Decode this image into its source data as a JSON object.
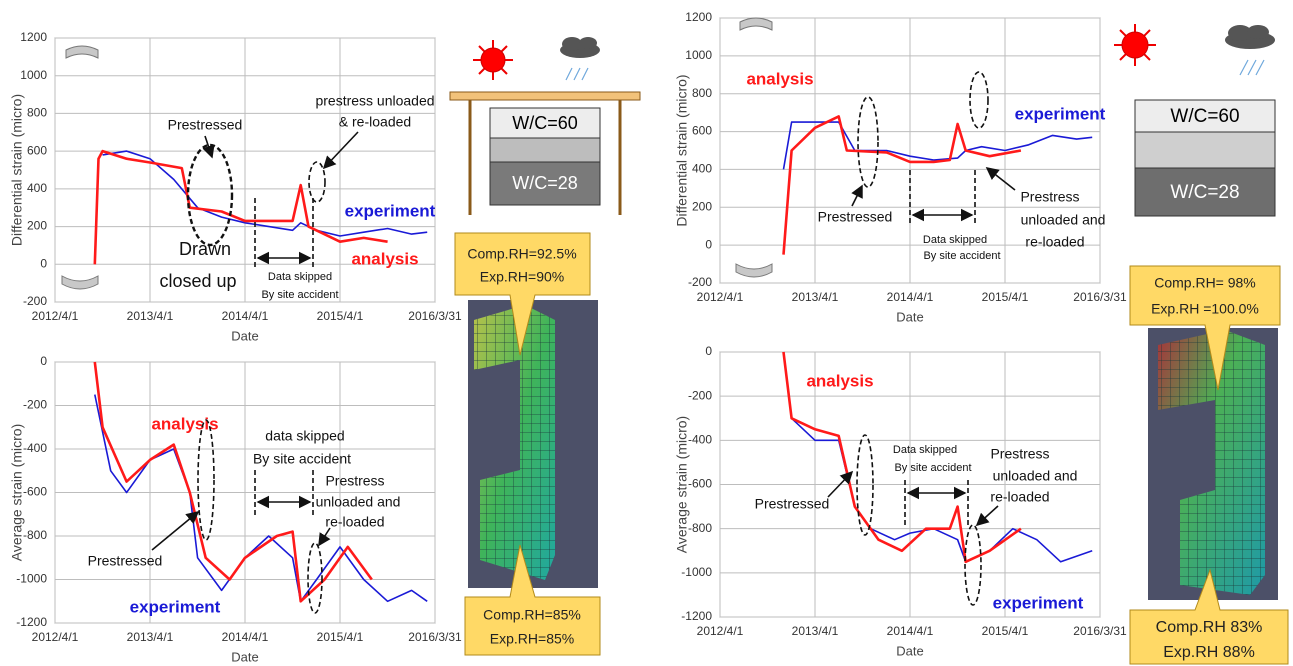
{
  "chart_data": [
    {
      "type": "line",
      "y_label": "Differential strain (micro)",
      "x_label": "Date",
      "xlim": [
        "2012/4/1",
        "2016/3/31"
      ],
      "xticks": [
        "2012/4/1",
        "2013/4/1",
        "2014/4/1",
        "2015/4/1",
        "2016/3/31"
      ],
      "ylim": [
        -200,
        1200
      ],
      "yticks": [
        -200,
        0,
        200,
        400,
        600,
        800,
        1000,
        1200
      ],
      "grid": true,
      "series": [
        {
          "name": "experiment",
          "color": "#1a1ad6",
          "x": [
            "2012/10/1",
            "2013/1/1",
            "2013/4/1",
            "2013/7/1",
            "2013/10/1",
            "2014/1/1",
            "2014/4/1",
            "2014/10/1",
            "2014/11/1",
            "2015/1/1",
            "2015/4/1",
            "2015/7/1",
            "2015/10/1",
            "2016/1/1",
            "2016/3/1"
          ],
          "values": [
            580,
            600,
            560,
            450,
            300,
            250,
            220,
            180,
            220,
            180,
            150,
            170,
            190,
            160,
            170
          ]
        },
        {
          "name": "analysis",
          "color": "#ff1a1a",
          "x": [
            "2012/9/1",
            "2012/9/15",
            "2012/10/1",
            "2013/1/1",
            "2013/4/1",
            "2013/8/1",
            "2013/9/1",
            "2014/1/1",
            "2014/4/1",
            "2014/10/1",
            "2014/11/1",
            "2014/12/1",
            "2015/4/1",
            "2015/7/1",
            "2015/10/1"
          ],
          "values": [
            0,
            560,
            600,
            560,
            540,
            510,
            300,
            280,
            230,
            230,
            420,
            200,
            120,
            140,
            120
          ]
        }
      ],
      "annotations": {
        "prestressed": "Prestressed",
        "unload": [
          "prestress unloaded",
          "& re-loaded"
        ],
        "drawn": [
          "Drawn",
          "closed up"
        ],
        "skipped": [
          "Data skipped",
          "By site accident"
        ]
      }
    },
    {
      "type": "line",
      "y_label": "Average strain (micro)",
      "x_label": "Date",
      "xlim": [
        "2012/4/1",
        "2016/3/31"
      ],
      "xticks": [
        "2012/4/1",
        "2013/4/1",
        "2014/4/1",
        "2015/4/1",
        "2016/3/31"
      ],
      "ylim": [
        -1200,
        0
      ],
      "yticks": [
        -1200,
        -1000,
        -800,
        -600,
        -400,
        -200,
        0
      ],
      "grid": true,
      "series": [
        {
          "name": "experiment",
          "color": "#1a1ad6",
          "x": [
            "2012/9/1",
            "2012/11/1",
            "2013/1/1",
            "2013/4/1",
            "2013/7/1",
            "2013/9/1",
            "2013/10/1",
            "2014/1/1",
            "2014/4/1",
            "2014/7/1",
            "2014/10/1",
            "2014/11/1",
            "2015/1/1",
            "2015/4/1",
            "2015/7/1",
            "2015/10/1",
            "2016/1/1",
            "2016/3/1"
          ],
          "values": [
            -150,
            -500,
            -600,
            -450,
            -400,
            -600,
            -900,
            -1050,
            -900,
            -800,
            -900,
            -1100,
            -1000,
            -850,
            -1000,
            -1100,
            -1050,
            -1100
          ]
        },
        {
          "name": "analysis",
          "color": "#ff1a1a",
          "x": [
            "2012/9/1",
            "2012/10/1",
            "2013/1/1",
            "2013/4/1",
            "2013/7/1",
            "2013/9/1",
            "2013/11/1",
            "2014/2/1",
            "2014/4/1",
            "2014/8/1",
            "2014/10/1",
            "2014/11/1",
            "2015/2/1",
            "2015/5/1",
            "2015/8/1"
          ],
          "values": [
            0,
            -300,
            -550,
            -450,
            -380,
            -600,
            -900,
            -1000,
            -900,
            -800,
            -780,
            -1100,
            -1000,
            -850,
            -1000
          ]
        }
      ],
      "annotations": {
        "prestressed": "Prestressed",
        "unload": [
          "Prestress",
          "unloaded and",
          "re-loaded"
        ],
        "skipped": [
          "data skipped",
          "By site accident"
        ]
      }
    },
    {
      "type": "line",
      "y_label": "Differential strain (micro)",
      "x_label": "Date",
      "xlim": [
        "2012/4/1",
        "2016/3/31"
      ],
      "xticks": [
        "2012/4/1",
        "2013/4/1",
        "2014/4/1",
        "2015/4/1",
        "2016/3/31"
      ],
      "ylim": [
        -200,
        1200
      ],
      "yticks": [
        -200,
        0,
        200,
        400,
        600,
        800,
        1000,
        1200
      ],
      "grid": true,
      "series": [
        {
          "name": "experiment",
          "color": "#1a1ad6",
          "x": [
            "2012/12/1",
            "2013/1/1",
            "2013/4/1",
            "2013/7/1",
            "2013/9/1",
            "2014/1/1",
            "2014/4/1",
            "2014/7/1",
            "2014/10/1",
            "2014/11/1",
            "2015/1/1",
            "2015/4/1",
            "2015/7/1",
            "2015/10/1",
            "2016/1/1",
            "2016/3/1"
          ],
          "values": [
            400,
            650,
            650,
            650,
            500,
            500,
            470,
            450,
            460,
            500,
            520,
            500,
            530,
            580,
            560,
            570
          ]
        },
        {
          "name": "analysis",
          "color": "#ff1a1a",
          "x": [
            "2012/12/1",
            "2013/1/1",
            "2013/4/1",
            "2013/7/1",
            "2013/8/1",
            "2014/1/1",
            "2014/4/1",
            "2014/7/1",
            "2014/9/1",
            "2014/10/1",
            "2014/11/1",
            "2015/2/1",
            "2015/6/1"
          ],
          "values": [
            -50,
            500,
            620,
            680,
            500,
            490,
            440,
            440,
            450,
            640,
            500,
            470,
            500
          ]
        }
      ],
      "annotations": {
        "prestressed": "Prestressed",
        "unload": [
          "Prestress",
          "unloaded and",
          "re-loaded"
        ],
        "skipped": [
          "Data skipped",
          "By site accident"
        ]
      }
    },
    {
      "type": "line",
      "y_label": "Average strain (micro)",
      "x_label": "Date",
      "xlim": [
        "2012/4/1",
        "2016/3/31"
      ],
      "xticks": [
        "2012/4/1",
        "2013/4/1",
        "2014/4/1",
        "2015/4/1",
        "2016/3/31"
      ],
      "ylim": [
        -1200,
        0
      ],
      "yticks": [
        -1200,
        -1000,
        -800,
        -600,
        -400,
        -200,
        0
      ],
      "grid": true,
      "series": [
        {
          "name": "experiment",
          "color": "#1a1ad6",
          "x": [
            "2012/12/1",
            "2013/1/1",
            "2013/4/1",
            "2013/7/1",
            "2013/9/1",
            "2013/11/1",
            "2014/2/1",
            "2014/4/1",
            "2014/7/1",
            "2014/10/1",
            "2014/11/1",
            "2015/2/1",
            "2015/5/1",
            "2015/8/1",
            "2015/11/1",
            "2016/3/1"
          ],
          "values": [
            0,
            -300,
            -400,
            -400,
            -700,
            -800,
            -850,
            -820,
            -800,
            -850,
            -950,
            -900,
            -800,
            -850,
            -950,
            -900
          ]
        },
        {
          "name": "analysis",
          "color": "#ff1a1a",
          "x": [
            "2012/12/1",
            "2013/1/1",
            "2013/4/1",
            "2013/7/1",
            "2013/9/1",
            "2013/12/1",
            "2014/3/1",
            "2014/6/1",
            "2014/9/1",
            "2014/10/1",
            "2014/11/1",
            "2015/2/1",
            "2015/6/1"
          ],
          "values": [
            0,
            -300,
            -350,
            -380,
            -700,
            -850,
            -900,
            -800,
            -800,
            -700,
            -950,
            -900,
            -800
          ]
        }
      ],
      "annotations": {
        "prestressed": "Prestressed",
        "unload": [
          "Prestress",
          "unloaded and",
          "re-loaded"
        ],
        "skipped": [
          "Data skipped",
          "By site accident"
        ]
      }
    }
  ],
  "diagrams": {
    "left": {
      "top_box": "W/C=60",
      "bottom_box": "W/C=28",
      "callout_top": [
        "Comp.RH=92.5%",
        "Exp.RH=90%"
      ],
      "callout_bottom": [
        "Comp.RH=85%",
        "Exp.RH=85%"
      ]
    },
    "right": {
      "top_box": "W/C=60",
      "bottom_box": "W/C=28",
      "callout_top": [
        "Comp.RH= 98%",
        "Exp.RH =100.0%"
      ],
      "callout_bottom": [
        "Comp.RH 83%",
        "Exp.RH 88%"
      ]
    }
  }
}
